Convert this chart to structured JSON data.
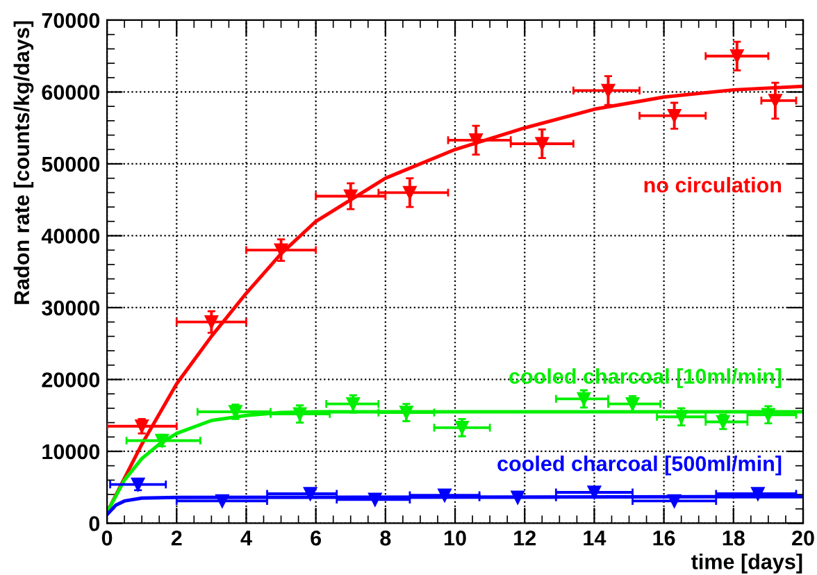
{
  "chart_data": {
    "type": "scatter",
    "xlabel": "time [days]",
    "ylabel": "Radon rate [counts/kg/days]",
    "xlim": [
      0,
      20
    ],
    "ylim": [
      0,
      70000
    ],
    "xticks": [
      0,
      2,
      4,
      6,
      8,
      10,
      12,
      14,
      16,
      18,
      20
    ],
    "yticks": [
      0,
      10000,
      20000,
      30000,
      40000,
      50000,
      60000,
      70000
    ],
    "grid": true,
    "marker": "triangle",
    "legend": false,
    "series": [
      {
        "name": "no circulation",
        "color": "#ff0000",
        "x": [
          1.0,
          3.0,
          5.0,
          7.0,
          8.7,
          10.6,
          12.5,
          14.4,
          16.3,
          18.1,
          19.2
        ],
        "values": [
          13500,
          28000,
          38000,
          45500,
          46000,
          53300,
          52800,
          60200,
          56700,
          65000,
          58800
        ],
        "errors": [
          1000,
          1500,
          1500,
          1800,
          2000,
          2000,
          2000,
          2000,
          1800,
          2000,
          2500
        ],
        "xerrors": [
          [
            0,
            2
          ],
          [
            2,
            4
          ],
          [
            4,
            6
          ],
          [
            6,
            8
          ],
          [
            7.8,
            9.8
          ],
          [
            9.8,
            11.6
          ],
          [
            11.6,
            13.4
          ],
          [
            13.4,
            15.3
          ],
          [
            15.3,
            17.2
          ],
          [
            17.2,
            19
          ],
          [
            18.8,
            19.8
          ]
        ]
      },
      {
        "name": "cooled charcoal [10ml/min]",
        "color": "#00ee00",
        "x": [
          1.58,
          3.69,
          5.54,
          7.07,
          8.6,
          10.2,
          13.7,
          15.1,
          16.5,
          17.7,
          19.0
        ],
        "values": [
          11500,
          15500,
          15200,
          16600,
          15400,
          13300,
          17300,
          16600,
          14800,
          14100,
          15100
        ],
        "errors": [
          800,
          1000,
          1200,
          1200,
          1200,
          1200,
          1200,
          1100,
          1200,
          1000,
          1200
        ],
        "xerrors": [
          [
            0.56,
            2.68
          ],
          [
            2.6,
            4.7
          ],
          [
            4.7,
            6.4
          ],
          [
            6.3,
            7.8
          ],
          [
            7.8,
            9.4
          ],
          [
            9.4,
            11
          ],
          [
            12.9,
            14.4
          ],
          [
            14.4,
            15.9
          ],
          [
            15.8,
            17.2
          ],
          [
            17.2,
            18.4
          ],
          [
            18.4,
            19.8
          ]
        ]
      },
      {
        "name": "cooled charcoal [500ml/min]",
        "color": "#0000ff",
        "x": [
          0.89,
          3.31,
          5.84,
          7.7,
          9.7,
          11.8,
          14.0,
          16.3,
          18.7
        ],
        "values": [
          5400,
          3100,
          4100,
          3300,
          3900,
          3600,
          4300,
          3100,
          4100
        ],
        "errors": [
          800,
          null,
          null,
          null,
          null,
          null,
          null,
          null,
          null
        ],
        "xerrors": [
          [
            0.09,
            1.69
          ],
          [
            2,
            4.6
          ],
          [
            4.6,
            6.6
          ],
          [
            6.6,
            8.7
          ],
          [
            8.7,
            10.7
          ],
          [
            10.7,
            12.9
          ],
          [
            12.9,
            15.1
          ],
          [
            15.1,
            17.5
          ],
          [
            17.5,
            19.8
          ]
        ]
      },
      {
        "type": "line",
        "marker": "none",
        "color": "#ff0000",
        "x": [
          0,
          1,
          2,
          3,
          4,
          5,
          6,
          8,
          10,
          12,
          14,
          16,
          18,
          20
        ],
        "values": [
          1500,
          11000,
          19400,
          26000,
          32000,
          37500,
          42000,
          48000,
          52000,
          55000,
          57600,
          59300,
          60300,
          60800
        ]
      },
      {
        "type": "line",
        "marker": "none",
        "color": "#00ee00",
        "x": [
          0,
          0.5,
          1,
          1.5,
          2,
          3,
          4,
          5,
          6,
          20
        ],
        "values": [
          1500,
          6000,
          9000,
          11000,
          12500,
          14300,
          15000,
          15400,
          15500,
          15500
        ]
      },
      {
        "type": "line",
        "marker": "none",
        "color": "#0000ff",
        "x": [
          0,
          0.25,
          0.5,
          1,
          2,
          20
        ],
        "values": [
          1200,
          2500,
          3100,
          3500,
          3600,
          3700
        ]
      }
    ]
  }
}
